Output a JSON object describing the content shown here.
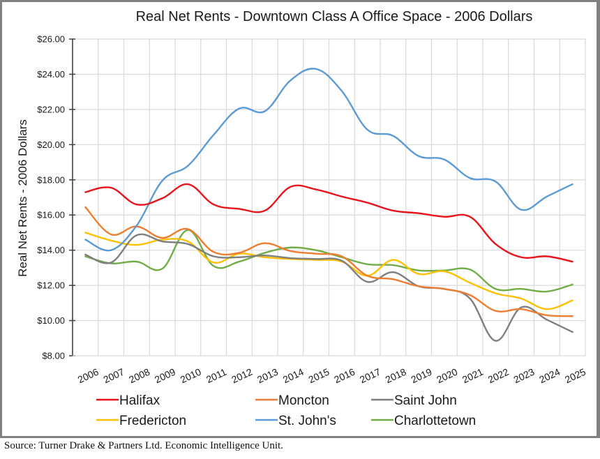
{
  "source_note": "Source: Turner Drake & Partners Ltd. Economic Intelligence Unit.",
  "chart_data": {
    "type": "line",
    "smooth": true,
    "title": "Real Net Rents - Downtown Class A Office Space - 2006 Dollars",
    "xlabel": "",
    "ylabel": "Real Net Rents - 2006 Dollars",
    "ylim": [
      8,
      26
    ],
    "ytick_step": 2,
    "ytick_labels": [
      "$8.00",
      "$10.00",
      "$12.00",
      "$14.00",
      "$16.00",
      "$18.00",
      "$20.00",
      "$22.00",
      "$24.00",
      "$26.00"
    ],
    "grid": true,
    "legend_position": "bottom",
    "categories": [
      "2006",
      "2007",
      "2008",
      "2009",
      "2010",
      "2011",
      "2012",
      "2013",
      "2014",
      "2015",
      "2016",
      "2017",
      "2018",
      "2019",
      "2020",
      "2021",
      "2022",
      "2023",
      "2024",
      "2025"
    ],
    "series": [
      {
        "name": "Halifax",
        "color": "#e8131b",
        "values": [
          17.3,
          17.55,
          16.6,
          16.95,
          17.75,
          16.6,
          16.35,
          16.25,
          17.6,
          17.45,
          17.05,
          16.7,
          16.25,
          16.1,
          15.9,
          15.9,
          14.35,
          13.6,
          13.65,
          13.35
        ]
      },
      {
        "name": "Moncton",
        "color": "#ed7d31",
        "values": [
          16.45,
          14.9,
          15.35,
          14.7,
          15.2,
          13.9,
          13.85,
          14.4,
          13.95,
          13.8,
          13.65,
          12.55,
          12.35,
          11.95,
          11.8,
          11.45,
          10.55,
          10.65,
          10.3,
          10.25
        ]
      },
      {
        "name": "Saint John",
        "color": "#7f7f7f",
        "values": [
          13.75,
          13.3,
          14.85,
          14.5,
          14.35,
          13.65,
          13.6,
          13.7,
          13.55,
          13.5,
          13.4,
          12.2,
          12.75,
          11.95,
          11.8,
          11.25,
          8.85,
          10.75,
          10.05,
          9.35
        ]
      },
      {
        "name": "Fredericton",
        "color": "#ffc000",
        "values": [
          15.0,
          14.55,
          14.3,
          14.6,
          14.5,
          13.3,
          13.8,
          13.6,
          13.5,
          13.45,
          13.35,
          12.55,
          13.45,
          12.65,
          12.8,
          12.15,
          11.55,
          11.25,
          10.65,
          11.15
        ]
      },
      {
        "name": "St. John's",
        "color": "#5b9bd5",
        "values": [
          14.6,
          14.0,
          15.4,
          17.95,
          18.8,
          20.55,
          22.05,
          21.9,
          23.65,
          24.3,
          23.05,
          20.85,
          20.5,
          19.35,
          19.15,
          18.1,
          17.9,
          16.3,
          17.05,
          17.75
        ]
      },
      {
        "name": "Charlottetown",
        "color": "#70ad47",
        "values": [
          13.65,
          13.25,
          13.35,
          12.95,
          15.15,
          13.1,
          13.35,
          13.85,
          14.15,
          14.0,
          13.6,
          13.2,
          13.15,
          12.85,
          12.85,
          12.9,
          11.8,
          11.8,
          11.65,
          12.05
        ]
      }
    ],
    "legend_rows": [
      [
        "Halifax",
        "Moncton",
        "Saint John"
      ],
      [
        "Fredericton",
        "St. John's",
        "Charlottetown"
      ]
    ]
  }
}
